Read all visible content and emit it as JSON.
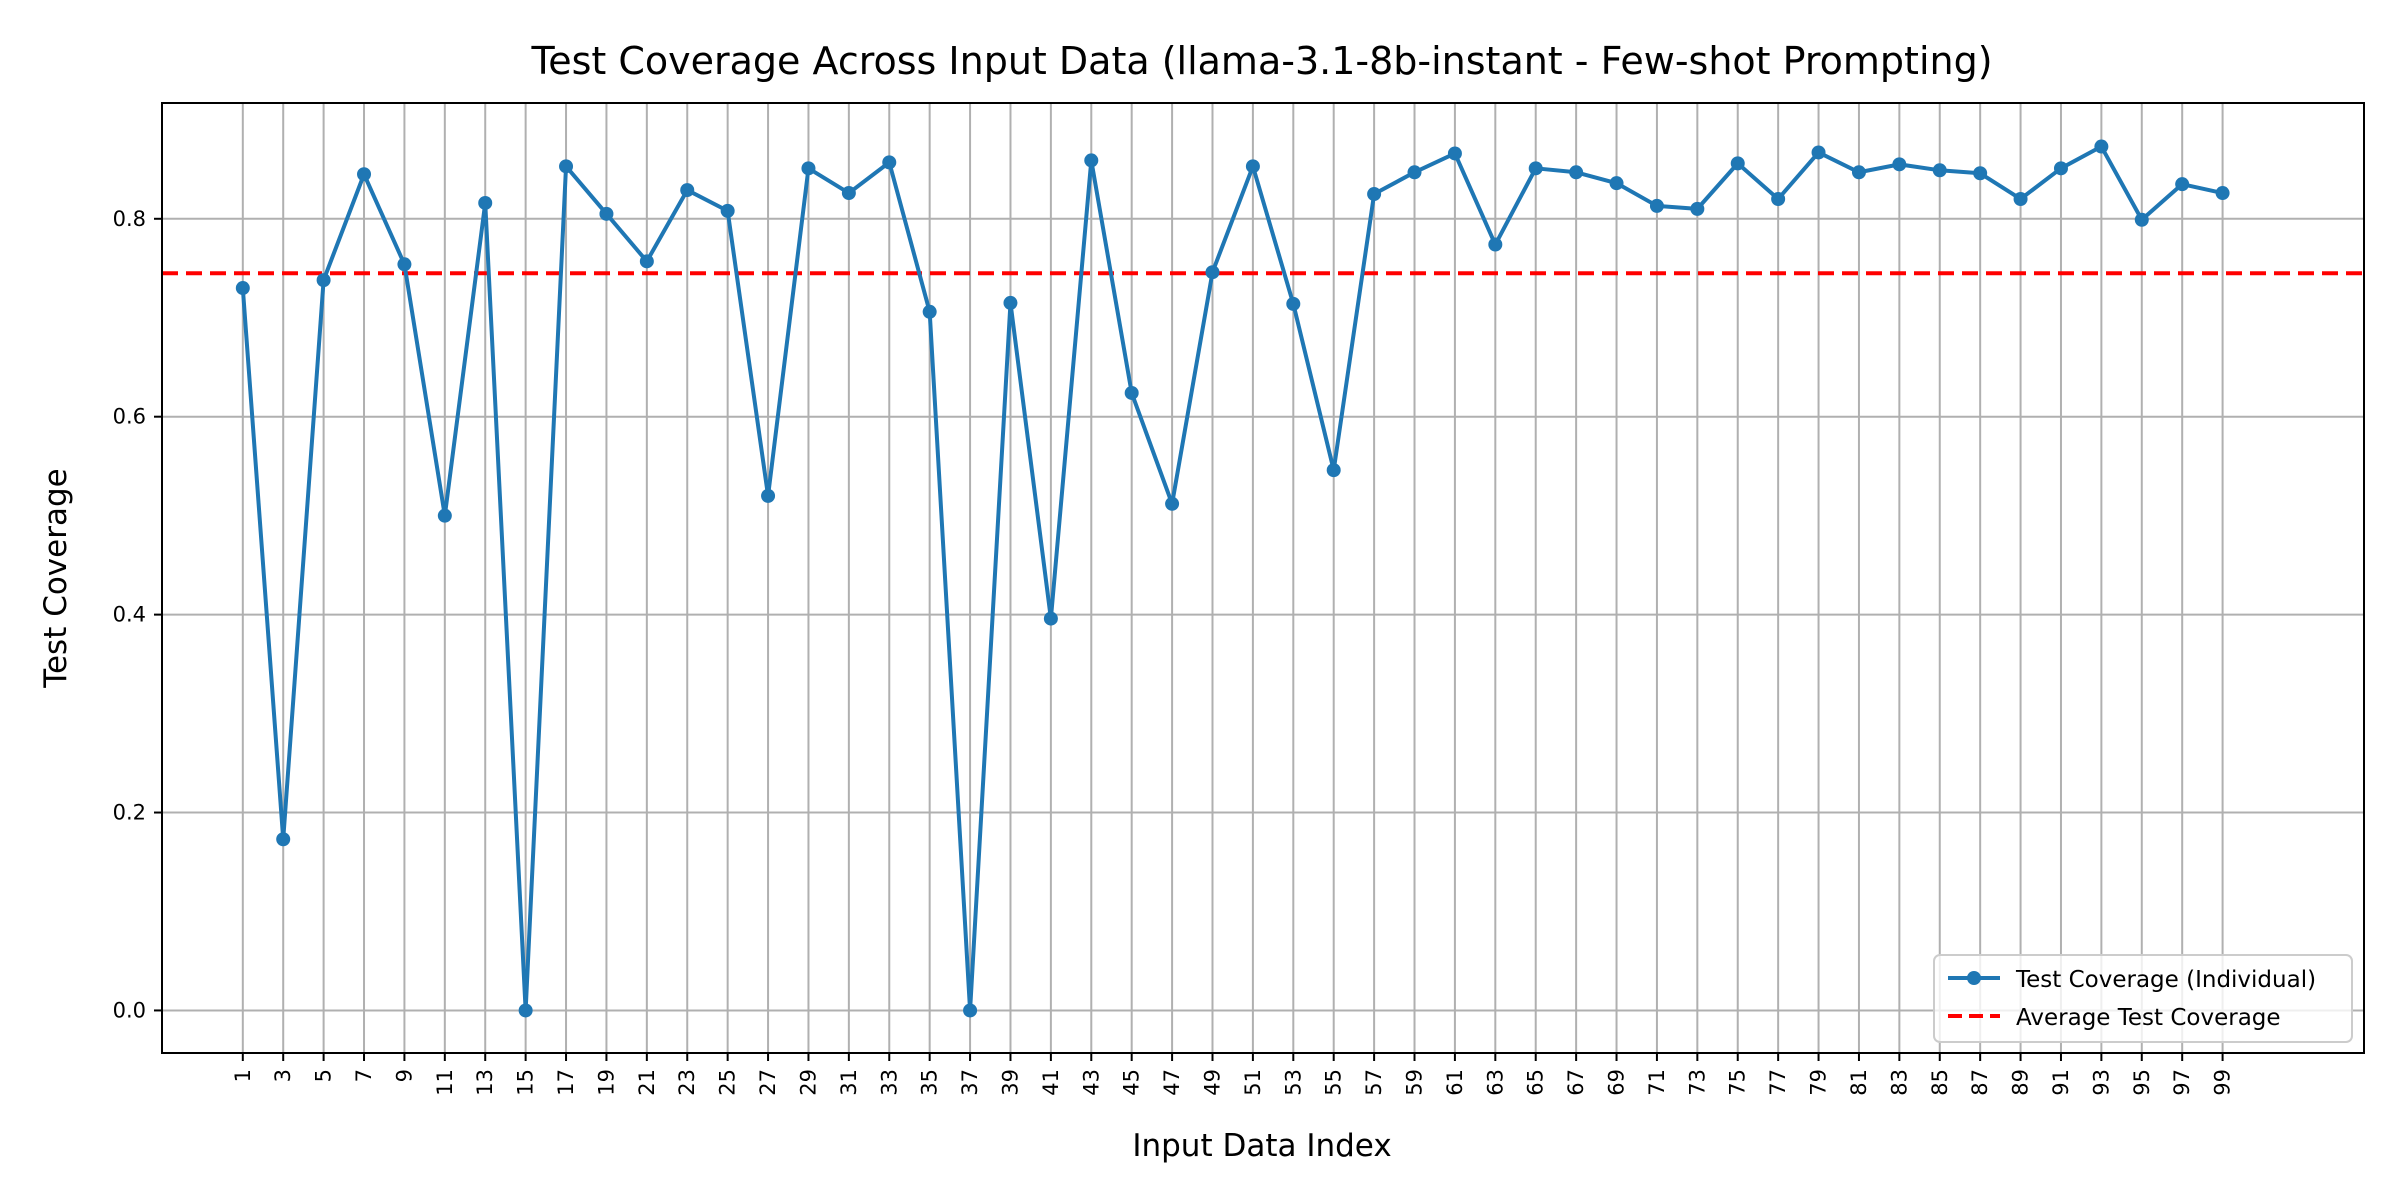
{
  "chart_data": {
    "type": "line",
    "title": "Test Coverage Across Input Data (llama-3.1-8b-instant - Few-shot Prompting)",
    "xlabel": "Input Data Index",
    "ylabel": "Test Coverage",
    "x": [
      1,
      3,
      5,
      7,
      9,
      11,
      13,
      15,
      17,
      19,
      21,
      23,
      25,
      27,
      29,
      31,
      33,
      35,
      37,
      39,
      41,
      43,
      45,
      47,
      49,
      51,
      53,
      55,
      57,
      59,
      61,
      63,
      65,
      67,
      69,
      71,
      73,
      75,
      77,
      79,
      81,
      83,
      85,
      87,
      89,
      91,
      93,
      95,
      97,
      99
    ],
    "x_ticks": [
      "1",
      "3",
      "5",
      "7",
      "9",
      "11",
      "13",
      "15",
      "17",
      "19",
      "21",
      "23",
      "25",
      "27",
      "29",
      "31",
      "33",
      "35",
      "37",
      "39",
      "41",
      "43",
      "45",
      "47",
      "49",
      "51",
      "53",
      "55",
      "57",
      "59",
      "61",
      "63",
      "65",
      "67",
      "69",
      "71",
      "73",
      "75",
      "77",
      "79",
      "81",
      "83",
      "85",
      "87",
      "89",
      "91",
      "93",
      "95",
      "97",
      "99"
    ],
    "xlim": [
      -3,
      106
    ],
    "ylim": [
      -0.043,
      0.917
    ],
    "y_ticks": [
      "0.0",
      "0.2",
      "0.4",
      "0.6",
      "0.8"
    ],
    "y_tick_values": [
      0,
      0.2,
      0.4,
      0.6,
      0.8
    ],
    "grid": true,
    "legend_position": "lower-right",
    "series": [
      {
        "name": "Test Coverage (Individual)",
        "color": "#1f77b4",
        "style": "solid-with-markers",
        "values": [
          0.73,
          0.173,
          0.738,
          0.845,
          0.754,
          0.5,
          0.816,
          0.0,
          0.853,
          0.805,
          0.757,
          0.829,
          0.808,
          0.52,
          0.851,
          0.826,
          0.857,
          0.706,
          0.0,
          0.715,
          0.396,
          0.859,
          0.624,
          0.512,
          0.746,
          0.853,
          0.714,
          0.546,
          0.825,
          0.847,
          0.866,
          0.774,
          0.851,
          0.847,
          0.836,
          0.813,
          0.81,
          0.856,
          0.82,
          0.867,
          0.847,
          0.855,
          0.849,
          0.846,
          0.82,
          0.851,
          0.873,
          0.799,
          0.835,
          0.826
        ]
      },
      {
        "name": "Average Test Coverage",
        "color": "#ff0000",
        "style": "dashed",
        "value": 0.745
      }
    ]
  }
}
